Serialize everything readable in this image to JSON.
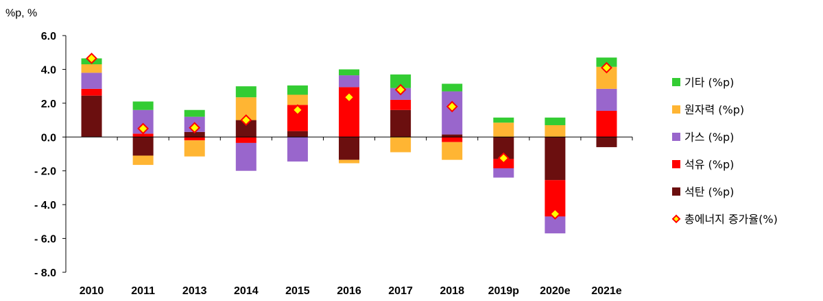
{
  "chart_data": {
    "type": "bar",
    "stacked": true,
    "unit_label": "%p, %",
    "categories": [
      "2010",
      "2011",
      "2013",
      "2014",
      "2015",
      "2016",
      "2017",
      "2018",
      "2019p",
      "2020e",
      "2021e"
    ],
    "ylim": [
      -8,
      6
    ],
    "yticks": [
      "6.0",
      "4.0",
      "2.0",
      "0.0",
      "- 2.0",
      "- 4.0",
      "- 6.0",
      "- 8.0"
    ],
    "ytick_values": [
      6,
      4,
      2,
      0,
      -2,
      -4,
      -6,
      -8
    ],
    "grid": false,
    "legend_position": "right",
    "series": [
      {
        "name": "석탄 (%p)",
        "color": "#6b0f0f",
        "values": [
          2.45,
          -1.1,
          0.3,
          1.0,
          0.35,
          -1.35,
          1.6,
          0.15,
          -1.3,
          -2.55,
          -0.6
        ]
      },
      {
        "name": "석유 (%p)",
        "color": "#ff0000",
        "values": [
          0.4,
          0.2,
          -0.2,
          -0.35,
          1.55,
          2.95,
          0.6,
          -0.3,
          -0.55,
          -2.15,
          1.55
        ]
      },
      {
        "name": "가스 (%p)",
        "color": "#9966cc",
        "values": [
          0.95,
          1.4,
          0.9,
          -1.65,
          -1.45,
          0.7,
          0.7,
          2.55,
          -0.55,
          -1.0,
          1.3
        ]
      },
      {
        "name": "원자력 (%p)",
        "color": "#ffb533",
        "values": [
          0.5,
          -0.55,
          -0.95,
          1.35,
          0.6,
          -0.2,
          -0.9,
          -1.05,
          0.85,
          0.7,
          1.3
        ]
      },
      {
        "name": "기타 (%p)",
        "color": "#33cc33",
        "values": [
          0.35,
          0.5,
          0.4,
          0.65,
          0.55,
          0.35,
          0.8,
          0.45,
          0.3,
          0.45,
          0.55
        ]
      }
    ],
    "line_series": {
      "name": "총에너지 증가율(%)",
      "marker": "diamond",
      "fill": "#ffff00",
      "stroke": "#ff0000",
      "values": [
        4.65,
        0.5,
        0.55,
        1.0,
        1.6,
        2.35,
        2.8,
        1.8,
        -1.25,
        -4.55,
        4.1
      ]
    },
    "legend_order": [
      "기타 (%p)",
      "원자력 (%p)",
      "가스 (%p)",
      "석유 (%p)",
      "석탄 (%p)",
      "총에너지 증가율(%)"
    ]
  }
}
